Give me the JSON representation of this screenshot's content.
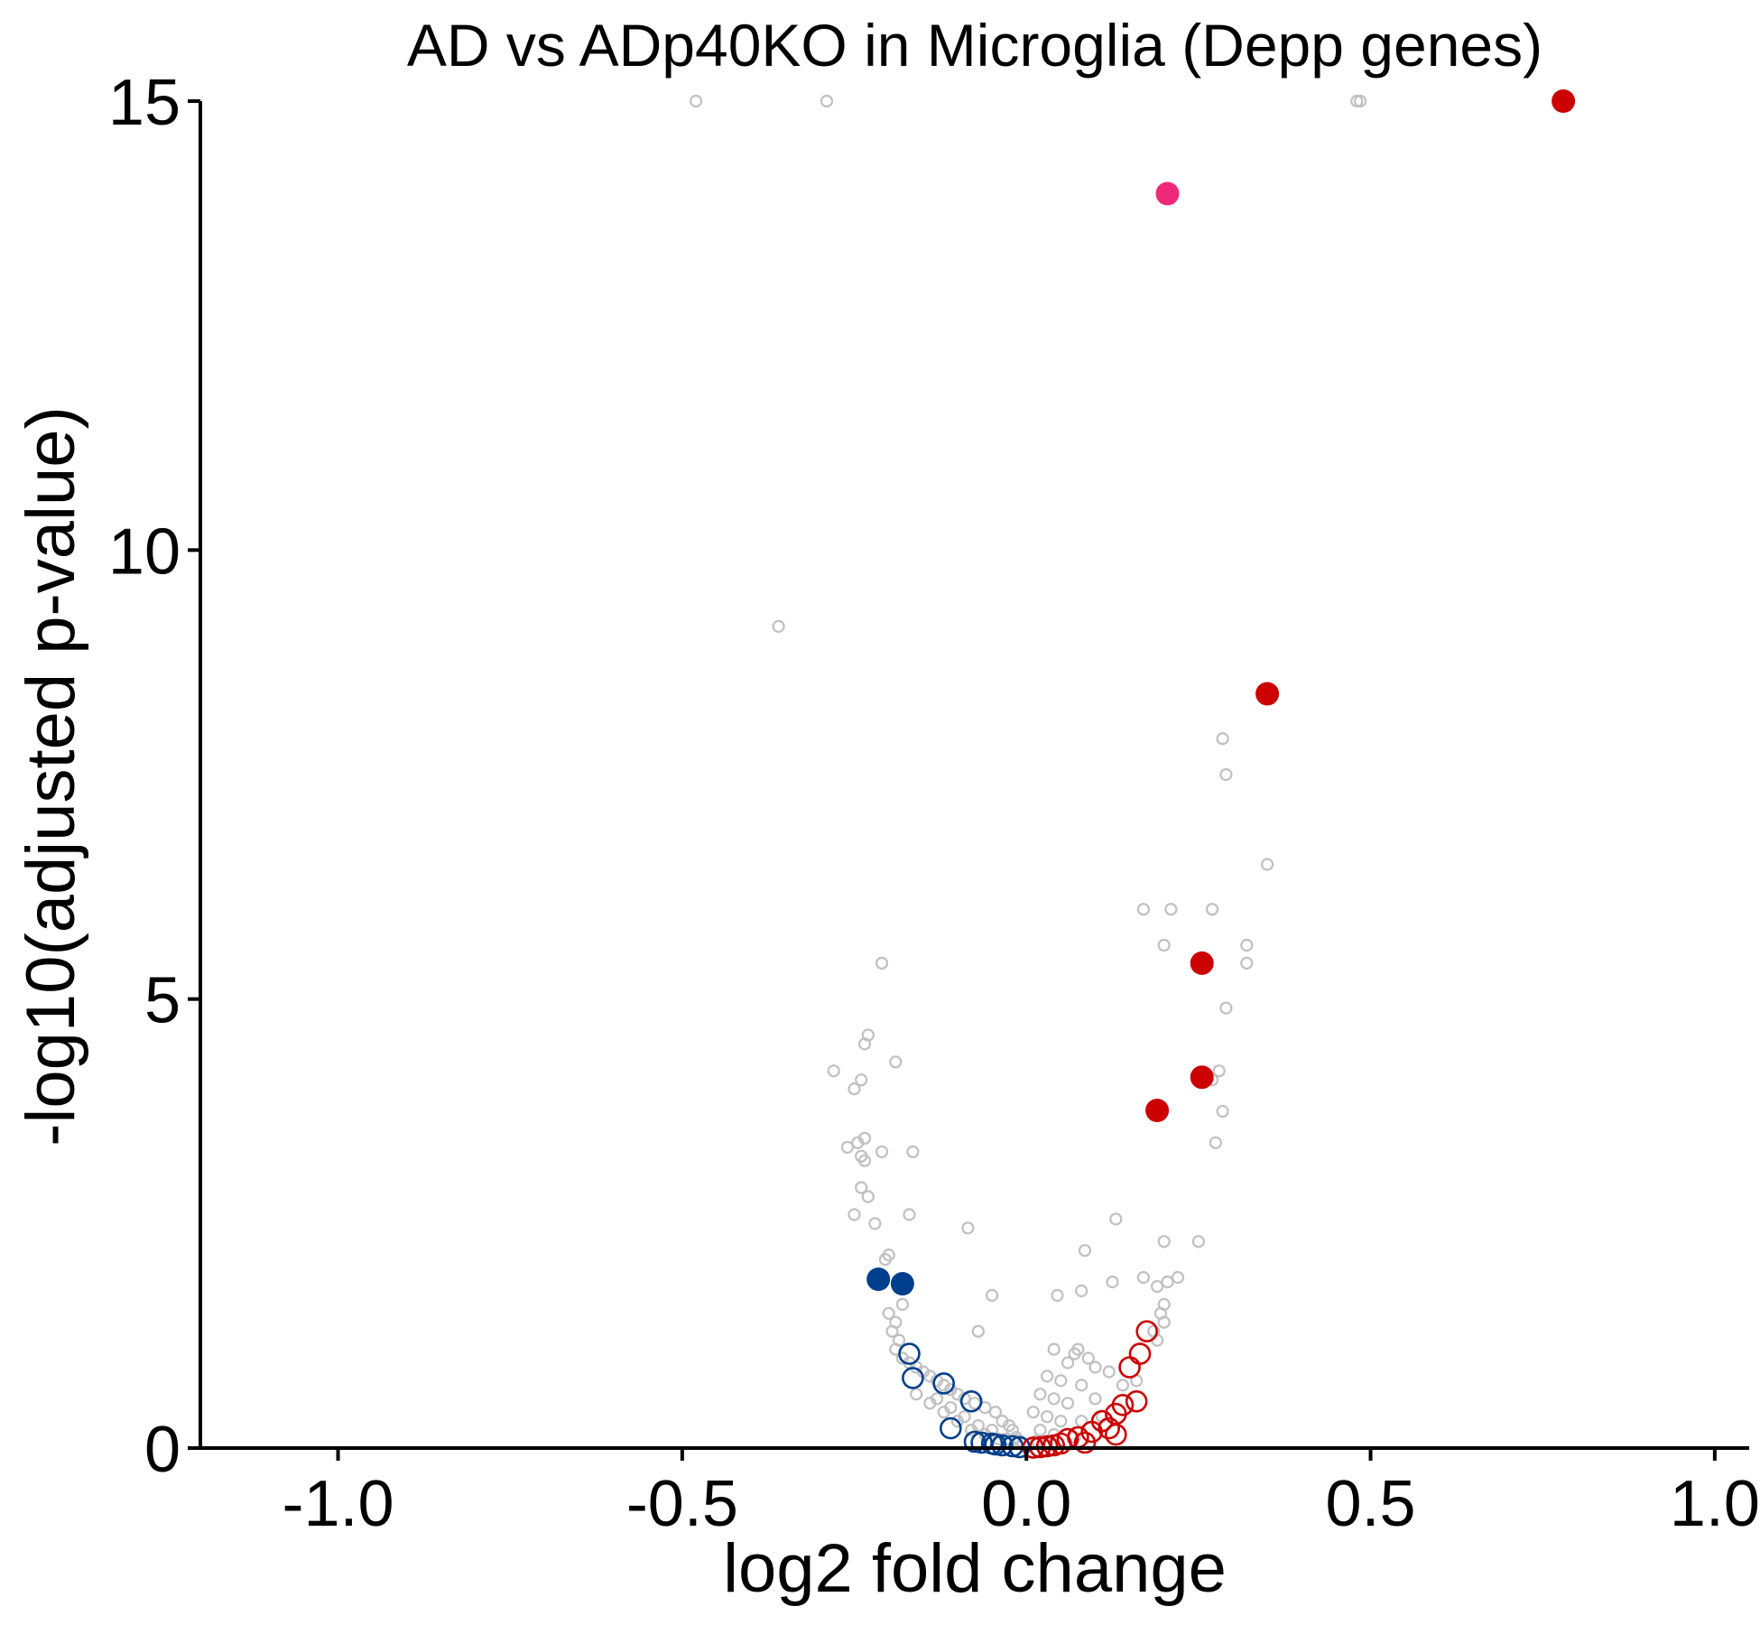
{
  "chart_data": {
    "type": "scatter",
    "title": "AD vs ADp40KO in Microglia (Depp genes)",
    "xlabel": "log2 fold change",
    "ylabel": "-log10(adjusted p-value)",
    "xlim": [
      -1.2,
      1.05
    ],
    "ylim": [
      0,
      15
    ],
    "x_ticks": [
      -1.0,
      -0.5,
      0.0,
      0.5,
      1.0
    ],
    "x_tick_labels": [
      "-1.0",
      "-0.5",
      "0.0",
      "0.5",
      "1.0"
    ],
    "y_ticks": [
      0,
      5,
      10,
      15
    ],
    "y_tick_labels": [
      "0",
      "5",
      "10",
      "15"
    ],
    "grid": false,
    "legend": "none",
    "colors": {
      "background_genes": "#c0c0c0",
      "up_depp": "#cc0000",
      "down_depp": "#003f8c",
      "highlight": "#f0287a"
    },
    "series": [
      {
        "style": "grey-open-small",
        "points": [
          [
            -0.48,
            15
          ],
          [
            -0.29,
            15
          ],
          [
            0.48,
            15
          ],
          [
            0.485,
            15
          ],
          [
            -0.36,
            9.15
          ],
          [
            -0.21,
            5.4
          ],
          [
            -0.23,
            4.6
          ],
          [
            -0.235,
            4.5
          ],
          [
            -0.19,
            4.3
          ],
          [
            -0.28,
            4.2
          ],
          [
            -0.24,
            4.1
          ],
          [
            -0.25,
            4.0
          ],
          [
            -0.235,
            3.45
          ],
          [
            -0.245,
            3.4
          ],
          [
            -0.26,
            3.35
          ],
          [
            -0.21,
            3.3
          ],
          [
            -0.24,
            3.25
          ],
          [
            -0.235,
            3.2
          ],
          [
            -0.165,
            3.3
          ],
          [
            -0.24,
            2.9
          ],
          [
            -0.23,
            2.8
          ],
          [
            -0.25,
            2.6
          ],
          [
            -0.17,
            2.6
          ],
          [
            -0.22,
            2.5
          ],
          [
            -0.085,
            2.45
          ],
          [
            -0.2,
            2.15
          ],
          [
            -0.205,
            2.1
          ],
          [
            -0.05,
            1.7
          ],
          [
            -0.07,
            1.3
          ],
          [
            0.17,
            6.0
          ],
          [
            0.21,
            6.0
          ],
          [
            0.27,
            6.0
          ],
          [
            0.2,
            5.6
          ],
          [
            0.32,
            5.6
          ],
          [
            0.32,
            5.4
          ],
          [
            0.29,
            4.9
          ],
          [
            0.28,
            4.2
          ],
          [
            0.27,
            4.1
          ],
          [
            0.285,
            3.75
          ],
          [
            0.275,
            3.4
          ],
          [
            0.285,
            7.9
          ],
          [
            0.29,
            7.5
          ],
          [
            0.35,
            6.5
          ],
          [
            0.13,
            2.55
          ],
          [
            0.25,
            2.3
          ],
          [
            0.2,
            2.3
          ],
          [
            0.085,
            2.2
          ],
          [
            0.08,
            1.75
          ],
          [
            0.045,
            1.7
          ],
          [
            0.125,
            1.85
          ],
          [
            0.17,
            1.9
          ],
          [
            0.205,
            1.85
          ],
          [
            0.22,
            1.9
          ],
          [
            0.19,
            1.8
          ],
          [
            0.2,
            1.6
          ],
          [
            0.195,
            1.5
          ],
          [
            0.2,
            1.4
          ],
          [
            0.185,
            1.3
          ],
          [
            0.19,
            1.2
          ],
          [
            0.04,
            1.1
          ],
          [
            0.07,
            1.05
          ],
          [
            0.075,
            1.1
          ],
          [
            0.06,
            0.95
          ],
          [
            0.09,
            1.0
          ],
          [
            0.1,
            0.9
          ],
          [
            0.12,
            0.85
          ],
          [
            0.03,
            0.8
          ],
          [
            0.05,
            0.75
          ],
          [
            0.08,
            0.7
          ],
          [
            0.14,
            0.7
          ],
          [
            0.16,
            0.75
          ],
          [
            0.02,
            0.6
          ],
          [
            0.04,
            0.55
          ],
          [
            0.06,
            0.5
          ],
          [
            0.1,
            0.55
          ],
          [
            0.01,
            0.4
          ],
          [
            0.03,
            0.35
          ],
          [
            0.05,
            0.3
          ],
          [
            0.08,
            0.3
          ],
          [
            0.11,
            0.35
          ],
          [
            0.02,
            0.2
          ],
          [
            0.04,
            0.15
          ],
          [
            0.07,
            0.12
          ],
          [
            0.015,
            0.08
          ],
          [
            0.03,
            0.05
          ],
          [
            -0.18,
            1.6
          ],
          [
            -0.2,
            1.5
          ],
          [
            -0.19,
            1.4
          ],
          [
            -0.195,
            1.3
          ],
          [
            -0.185,
            1.2
          ],
          [
            -0.19,
            1.1
          ],
          [
            -0.18,
            1.0
          ],
          [
            -0.17,
            0.95
          ],
          [
            -0.16,
            0.9
          ],
          [
            -0.15,
            0.85
          ],
          [
            -0.14,
            0.8
          ],
          [
            -0.13,
            0.75
          ],
          [
            -0.12,
            0.7
          ],
          [
            -0.11,
            0.65
          ],
          [
            -0.1,
            0.6
          ],
          [
            -0.09,
            0.55
          ],
          [
            -0.075,
            0.5
          ],
          [
            -0.06,
            0.45
          ],
          [
            -0.045,
            0.4
          ],
          [
            -0.035,
            0.3
          ],
          [
            -0.025,
            0.25
          ],
          [
            -0.02,
            0.2
          ],
          [
            -0.015,
            0.12
          ],
          [
            -0.01,
            0.08
          ],
          [
            -0.005,
            0.05
          ],
          [
            -0.16,
            0.6
          ],
          [
            -0.14,
            0.5
          ],
          [
            -0.12,
            0.4
          ],
          [
            -0.1,
            0.3
          ],
          [
            -0.08,
            0.2
          ],
          [
            -0.06,
            0.15
          ],
          [
            -0.04,
            0.1
          ],
          [
            -0.13,
            0.55
          ],
          [
            -0.11,
            0.45
          ],
          [
            -0.09,
            0.35
          ],
          [
            -0.07,
            0.25
          ],
          [
            -0.05,
            0.2
          ],
          [
            -0.03,
            0.1
          ]
        ]
      },
      {
        "style": "blue-open-large",
        "points": [
          [
            -0.17,
            1.05
          ],
          [
            -0.165,
            0.78
          ],
          [
            -0.12,
            0.72
          ],
          [
            -0.08,
            0.52
          ],
          [
            -0.11,
            0.22
          ],
          [
            -0.075,
            0.07
          ],
          [
            -0.065,
            0.06
          ],
          [
            -0.05,
            0.05
          ],
          [
            -0.045,
            0.04
          ],
          [
            -0.035,
            0.03
          ],
          [
            -0.02,
            0.02
          ],
          [
            -0.01,
            0.01
          ]
        ]
      },
      {
        "style": "blue-filled",
        "points": [
          [
            -0.215,
            1.88
          ],
          [
            -0.18,
            1.83
          ]
        ]
      },
      {
        "style": "red-open-large",
        "points": [
          [
            0.175,
            1.3
          ],
          [
            0.165,
            1.05
          ],
          [
            0.15,
            0.9
          ],
          [
            0.16,
            0.52
          ],
          [
            0.14,
            0.48
          ],
          [
            0.13,
            0.38
          ],
          [
            0.11,
            0.3
          ],
          [
            0.12,
            0.22
          ],
          [
            0.13,
            0.15
          ],
          [
            0.095,
            0.18
          ],
          [
            0.075,
            0.12
          ],
          [
            0.06,
            0.1
          ],
          [
            0.085,
            0.06
          ],
          [
            0.05,
            0.05
          ],
          [
            0.04,
            0.03
          ],
          [
            0.03,
            0.02
          ],
          [
            0.02,
            0.01
          ],
          [
            0.01,
            0.005
          ]
        ]
      },
      {
        "style": "red-filled",
        "points": [
          [
            0.78,
            15
          ],
          [
            0.35,
            8.4
          ],
          [
            0.255,
            5.4
          ],
          [
            0.255,
            4.13
          ],
          [
            0.19,
            3.76
          ]
        ]
      },
      {
        "style": "pink-filled",
        "points": [
          [
            0.205,
            13.97
          ]
        ]
      }
    ]
  }
}
